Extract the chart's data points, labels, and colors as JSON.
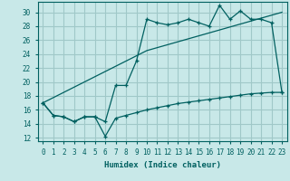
{
  "xlabel": "Humidex (Indice chaleur)",
  "bg_color": "#c8e8e8",
  "line_color": "#006060",
  "grid_color": "#a0c8c8",
  "xlim": [
    -0.5,
    23.5
  ],
  "ylim": [
    11.5,
    31.5
  ],
  "yticks": [
    12,
    14,
    16,
    18,
    20,
    22,
    24,
    26,
    28,
    30
  ],
  "xticks": [
    0,
    1,
    2,
    3,
    4,
    5,
    6,
    7,
    8,
    9,
    10,
    11,
    12,
    13,
    14,
    15,
    16,
    17,
    18,
    19,
    20,
    21,
    22,
    23
  ],
  "line1_x": [
    0,
    1,
    2,
    3,
    4,
    5,
    6,
    7,
    8,
    9,
    10,
    11,
    12,
    13,
    14,
    15,
    16,
    17,
    18,
    19,
    20,
    21,
    22,
    23
  ],
  "line1_y": [
    17.0,
    15.2,
    15.0,
    14.3,
    15.0,
    15.0,
    14.3,
    19.5,
    19.5,
    23.0,
    29.0,
    28.5,
    28.2,
    28.5,
    29.0,
    28.5,
    28.0,
    31.0,
    29.0,
    30.2,
    29.0,
    29.0,
    28.5,
    18.5
  ],
  "line2_x": [
    0,
    10,
    23
  ],
  "line2_y": [
    17.0,
    24.5,
    30.0
  ],
  "line3_x": [
    0,
    1,
    2,
    3,
    4,
    5,
    6,
    7,
    8,
    9,
    10,
    11,
    12,
    13,
    14,
    15,
    16,
    17,
    18,
    19,
    20,
    21,
    22,
    23
  ],
  "line3_y": [
    17.0,
    15.2,
    15.0,
    14.3,
    15.0,
    15.0,
    12.2,
    14.8,
    15.2,
    15.6,
    16.0,
    16.3,
    16.6,
    16.9,
    17.1,
    17.3,
    17.5,
    17.7,
    17.9,
    18.1,
    18.3,
    18.4,
    18.5,
    18.5
  ]
}
